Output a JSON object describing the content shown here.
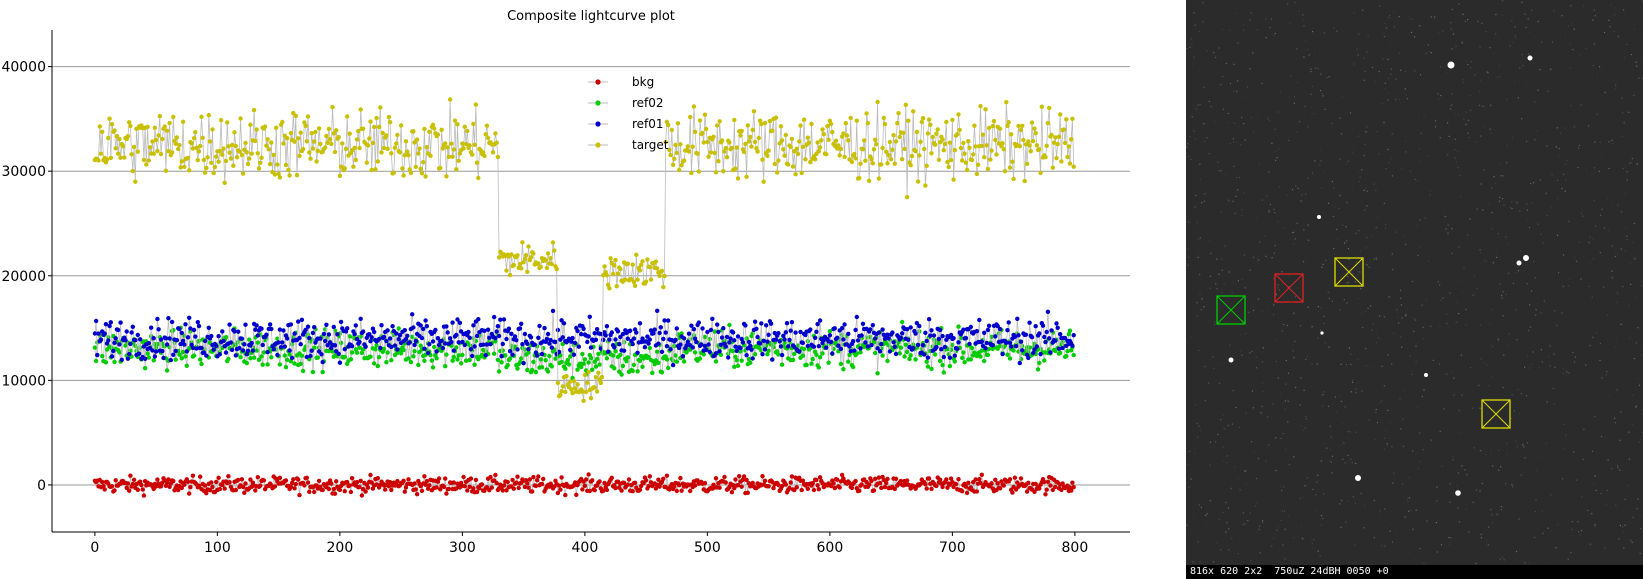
{
  "chart_data": {
    "type": "scatter",
    "title": "Composite lightcurve plot",
    "xlabel": "",
    "ylabel": "",
    "xlim": [
      -35,
      845
    ],
    "ylim": [
      -4500,
      43500
    ],
    "xticks": [
      0,
      100,
      200,
      300,
      400,
      500,
      600,
      700,
      800
    ],
    "yticks": [
      0,
      10000,
      20000,
      30000,
      40000
    ],
    "xtick_labels": [
      "0",
      "100",
      "200",
      "300",
      "400",
      "500",
      "600",
      "700",
      "800"
    ],
    "ytick_labels": [
      "0",
      "10000",
      "20000",
      "30000",
      "40000"
    ],
    "grid": "horizontal",
    "legend_position": "top-center",
    "n_points": 800,
    "series": [
      {
        "name": "bkg",
        "color": "#cc0000",
        "segments": [
          {
            "x": [
              0,
              800
            ],
            "mean": 0,
            "spread": 700
          }
        ]
      },
      {
        "name": "ref02",
        "color": "#00cc00",
        "segments": [
          {
            "x": [
              0,
              330
            ],
            "mean": 13000,
            "spread": 1600
          },
          {
            "x": [
              330,
              470
            ],
            "mean": 12000,
            "spread": 1600
          },
          {
            "x": [
              470,
              800
            ],
            "mean": 13000,
            "spread": 1600
          }
        ]
      },
      {
        "name": "ref01",
        "color": "#0000cc",
        "segments": [
          {
            "x": [
              0,
              800
            ],
            "mean": 14000,
            "spread": 1700
          }
        ]
      },
      {
        "name": "target",
        "color": "#c8c000",
        "segments": [
          {
            "x": [
              0,
              330
            ],
            "mean": 32500,
            "spread": 3000
          },
          {
            "x": [
              330,
              378
            ],
            "mean": 21500,
            "spread": 1500
          },
          {
            "x": [
              378,
              415
            ],
            "mean": 9500,
            "spread": 1200
          },
          {
            "x": [
              415,
              466
            ],
            "mean": 20500,
            "spread": 1500
          },
          {
            "x": [
              466,
              800
            ],
            "mean": 32500,
            "spread": 3000
          }
        ]
      }
    ]
  },
  "image_view": {
    "status_text": "816x 620 2x2  750uZ 24dBH 0050 +0",
    "background_color": "#2b2b2b",
    "markers": [
      {
        "name": "green-marker",
        "color": "#00cc00"
      },
      {
        "name": "red-marker",
        "color": "#dd2222"
      },
      {
        "name": "yellow-marker-1",
        "color": "#dddd00"
      },
      {
        "name": "yellow-marker-2",
        "color": "#dddd00"
      }
    ]
  }
}
